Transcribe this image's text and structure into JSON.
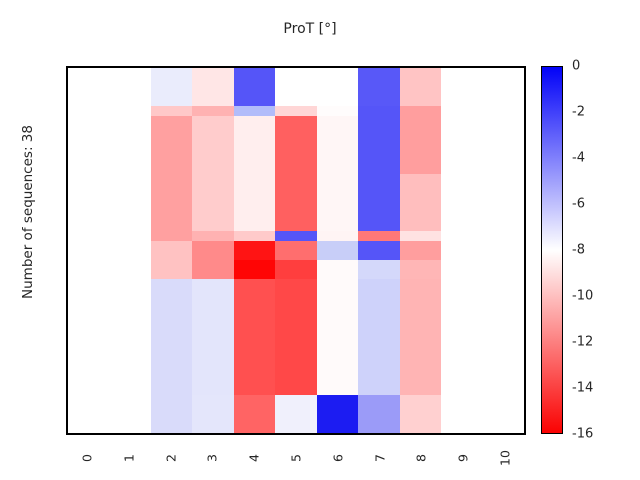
{
  "figure": {
    "title": "ProT [°]",
    "ylabel": "Number of sequences: 38"
  },
  "chart_data": {
    "type": "heatmap",
    "title": "ProT [°]",
    "xlabel": "",
    "ylabel": "Number of sequences: 38",
    "n_sequences_total": 38,
    "x_tick_labels": [
      "0",
      "1",
      "2",
      "3",
      "4",
      "5",
      "6",
      "7",
      "8",
      "9",
      "10"
    ],
    "value_range": [
      -16,
      0
    ],
    "grid": false,
    "colorbar": {
      "position": "right",
      "tick_labels": [
        "0",
        "-2",
        "-4",
        "-6",
        "-8",
        "-10",
        "-12",
        "-14",
        "-16"
      ],
      "max_color": "#0202f8",
      "mid_color": "#ffffff",
      "min_color": "#fa0202",
      "mapping": "blue = 0, white = -8, red = -16"
    },
    "row_heights_sequences": [
      4,
      1,
      6,
      6,
      1,
      2,
      2,
      12,
      4
    ],
    "columns_with_data": [
      2,
      3,
      4,
      5,
      6,
      7,
      8
    ],
    "values": [
      [
        null,
        null,
        -7.3,
        -8.8,
        -2.7,
        -8.0,
        -8.0,
        -2.8,
        -9.9,
        null,
        null
      ],
      [
        null,
        null,
        -9.7,
        -10.4,
        -5.6,
        -9.3,
        -8.1,
        -2.7,
        -11.0,
        null,
        null
      ],
      [
        null,
        null,
        -11.0,
        -9.6,
        -8.5,
        -13.0,
        -8.3,
        -2.7,
        -11.0,
        null,
        null
      ],
      [
        null,
        null,
        -11.0,
        -9.6,
        -8.5,
        -13.0,
        -8.3,
        -2.7,
        -10.0,
        null,
        null
      ],
      [
        null,
        null,
        -11.0,
        -10.4,
        -9.7,
        -2.7,
        -8.3,
        -12.2,
        -8.9,
        null,
        null
      ],
      [
        null,
        null,
        -9.9,
        -11.7,
        -15.4,
        -12.5,
        -6.3,
        -2.7,
        -11.0,
        null,
        null
      ],
      [
        null,
        null,
        -9.9,
        -11.7,
        -15.9,
        -14.1,
        -8.2,
        -6.7,
        -10.3,
        null,
        null
      ],
      [
        null,
        null,
        -6.8,
        -7.1,
        -13.5,
        -13.7,
        -8.2,
        -6.5,
        -10.4,
        null,
        null
      ],
      [
        null,
        null,
        -6.8,
        -7.1,
        -12.9,
        -7.5,
        -0.9,
        -4.9,
        -9.5,
        null,
        null
      ]
    ],
    "cell_colors": [
      [
        "#ffffff",
        "#ffffff",
        "#eaecfc",
        "#ffe6e6",
        "#5555f8",
        "#ffffff",
        "#ffffff",
        "#5858f8",
        "#ffc4c4",
        "#ffffff",
        "#ffffff"
      ],
      [
        "#ffffff",
        "#ffffff",
        "#ffc8c8",
        "#ffb2b2",
        "#b2bcfa",
        "#ffd6d6",
        "#fffcfc",
        "#5555f8",
        "#ff9e9e",
        "#ffffff",
        "#ffffff"
      ],
      [
        "#ffffff",
        "#ffffff",
        "#ffa0a0",
        "#ffcccc",
        "#ffeeee",
        "#ff6060",
        "#fff6f6",
        "#5555f8",
        "#ff9e9e",
        "#ffffff",
        "#ffffff"
      ],
      [
        "#ffffff",
        "#ffffff",
        "#ffa0a0",
        "#ffcccc",
        "#ffeeee",
        "#ff6060",
        "#fff6f6",
        "#5555f8",
        "#ffbebe",
        "#ffffff",
        "#ffffff"
      ],
      [
        "#ffffff",
        "#ffffff",
        "#ffa0a0",
        "#ffb2b2",
        "#ffcaca",
        "#5555f8",
        "#fff4f4",
        "#ff7878",
        "#ffe2e2",
        "#ffffff",
        "#ffffff"
      ],
      [
        "#ffffff",
        "#ffffff",
        "#ffc2c2",
        "#ff8a8a",
        "#ff1414",
        "#ff6e6e",
        "#c8cef8",
        "#5555f8",
        "#ff9e9e",
        "#ffffff",
        "#ffffff"
      ],
      [
        "#ffffff",
        "#ffffff",
        "#ffc2c2",
        "#ff8a8a",
        "#ff0505",
        "#ff3e3e",
        "#fffafa",
        "#d4d8fa",
        "#ffb6b6",
        "#ffffff",
        "#ffffff"
      ],
      [
        "#ffffff",
        "#ffffff",
        "#d9dbfa",
        "#e3e5fb",
        "#ff5050",
        "#ff4848",
        "#fffafa",
        "#ced2fa",
        "#ffb4b4",
        "#ffffff",
        "#ffffff"
      ],
      [
        "#ffffff",
        "#ffffff",
        "#d9dbfa",
        "#e4e6fb",
        "#ff6464",
        "#f0f0fc",
        "#1c1cf2",
        "#9b9bf8",
        "#ffd0d0",
        "#ffffff",
        "#ffffff"
      ]
    ]
  }
}
